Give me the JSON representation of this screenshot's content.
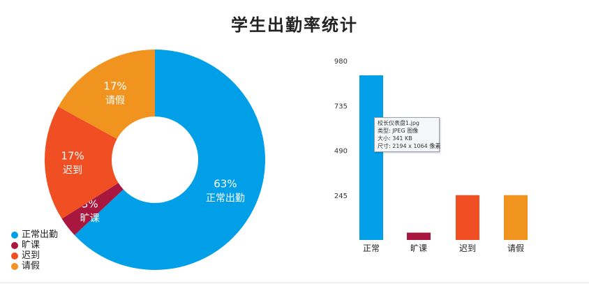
{
  "title": "学生出勤率统计",
  "chart_data": [
    {
      "type": "pie",
      "variant": "donut",
      "categories": [
        "正常出勤",
        "旷课",
        "迟到",
        "请假"
      ],
      "values": [
        63,
        3,
        17,
        17
      ],
      "value_labels": [
        "63%",
        "3%",
        "17%",
        "17%"
      ],
      "colors": [
        "#009fe8",
        "#a8183e",
        "#f04e23",
        "#f0941f"
      ],
      "legend_position": "bottom-left"
    },
    {
      "type": "bar",
      "categories": [
        "正常",
        "旷课",
        "迟到",
        "请假"
      ],
      "values": [
        900,
        40,
        245,
        245
      ],
      "colors": [
        "#009fe8",
        "#a8183e",
        "#f04e23",
        "#f0941f"
      ],
      "yticks": [
        "980",
        "735",
        "490",
        "245"
      ],
      "ylim": [
        0,
        980
      ],
      "grid": false
    }
  ],
  "legend": {
    "items": [
      {
        "label": "正常出勤",
        "color": "#009fe8"
      },
      {
        "label": "旷课",
        "color": "#a8183e"
      },
      {
        "label": "迟到",
        "color": "#f04e23"
      },
      {
        "label": "请假",
        "color": "#f0941f"
      }
    ]
  },
  "tooltip": {
    "lines": [
      "校长仪表盘1.jpg",
      "类型: JPEG 图像",
      "大小: 341 KB",
      "尺寸: 2194 x 1064 像素"
    ]
  }
}
